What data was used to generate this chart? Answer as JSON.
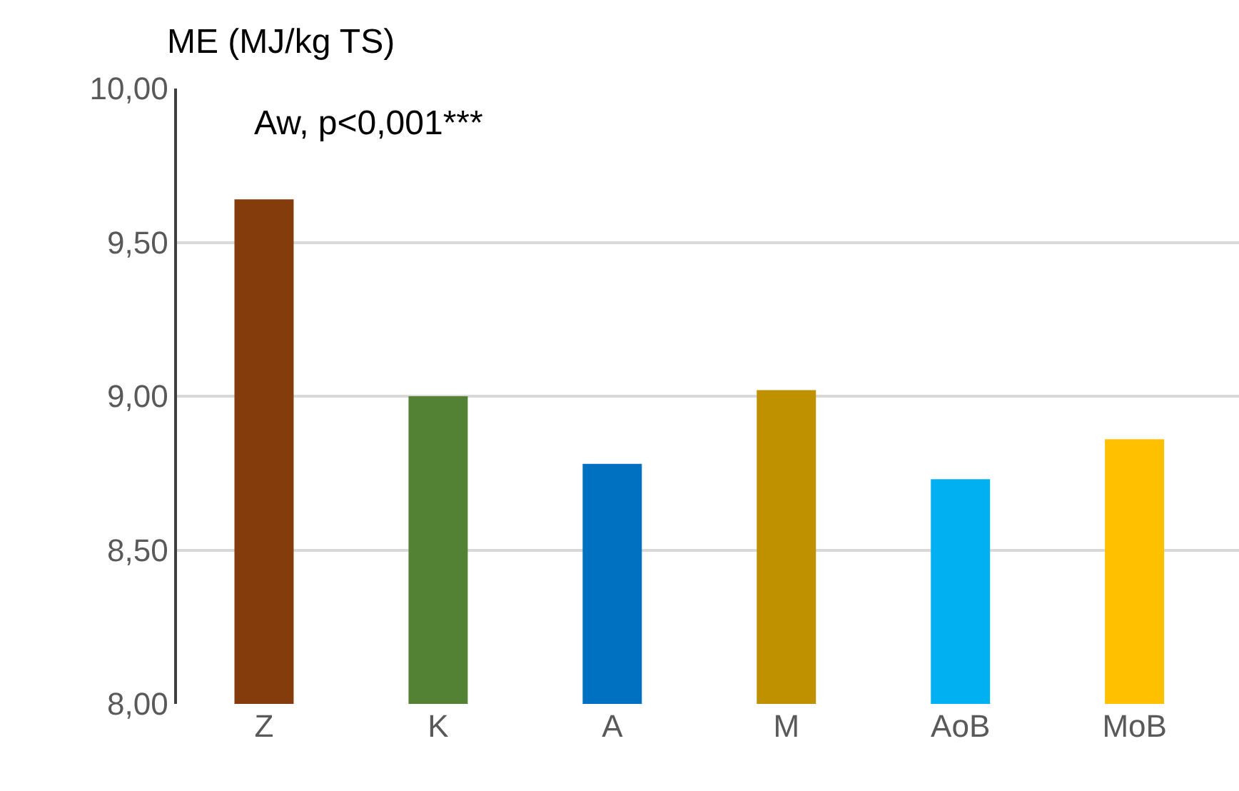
{
  "chart_data": {
    "type": "bar",
    "ylabel": "ME (MJ/kg TS)",
    "categories": [
      "Z",
      "K",
      "A",
      "M",
      "AoB",
      "MoB"
    ],
    "values": [
      9.64,
      9.0,
      8.78,
      9.02,
      8.73,
      8.86
    ],
    "colors": [
      "#843c0c",
      "#548235",
      "#0070c0",
      "#bf9000",
      "#00b0f0",
      "#ffc000"
    ],
    "ylim": [
      8,
      10
    ],
    "yticks": [
      {
        "value": 8,
        "label": "8,00"
      },
      {
        "value": 8.5,
        "label": "8,50"
      },
      {
        "value": 9,
        "label": "9,00"
      },
      {
        "value": 9.5,
        "label": "9,50"
      },
      {
        "value": 10,
        "label": "10,00"
      }
    ],
    "grid": "y",
    "annotations": [
      "Aw, p<0,001***"
    ]
  }
}
